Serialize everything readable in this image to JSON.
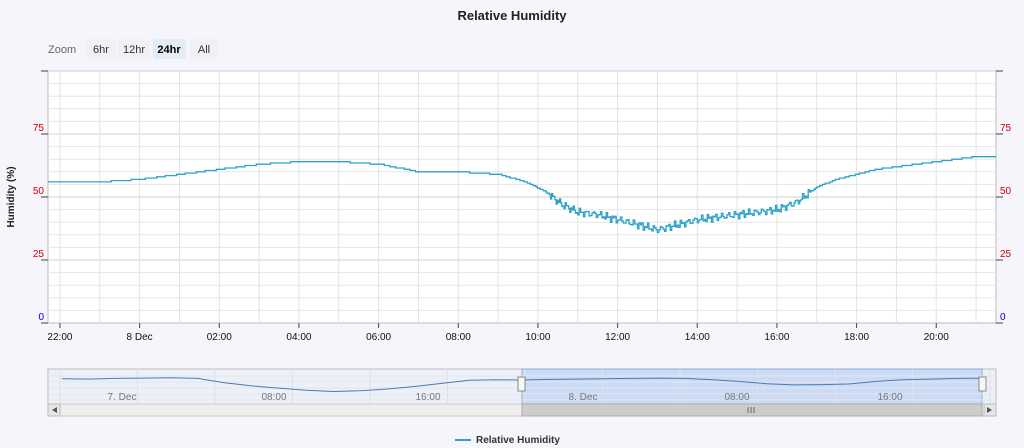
{
  "title": "Relative Humidity",
  "zoom": {
    "label": "Zoom",
    "buttons": [
      "6hr",
      "12hr",
      "24hr",
      "All"
    ],
    "selected": "24hr"
  },
  "colors": {
    "series": "#2fa3c6",
    "tick_red": "#cc0000",
    "tick_blue": "#0000cc",
    "selection": "#cfdcf7"
  },
  "chart_data": {
    "type": "line",
    "title": "Relative Humidity",
    "ylabel": "Humidity (%)",
    "ylim": [
      0,
      100
    ],
    "y_ticks": [
      "0",
      "25",
      "50",
      "75"
    ],
    "y_ticks_right": [
      "0",
      "25",
      "50",
      "75"
    ],
    "x_ticks": [
      "22:00",
      "8 Dec",
      "02:00",
      "04:00",
      "06:00",
      "08:00",
      "10:00",
      "12:00",
      "14:00",
      "16:00",
      "18:00",
      "20:00"
    ],
    "x_hours": [
      -2,
      0,
      2,
      4,
      6,
      8,
      10,
      12,
      14,
      16,
      18,
      20
    ],
    "xlim_hours": [
      -2.3,
      21.5
    ],
    "grid": true,
    "legend_position": "bottom-center",
    "series": [
      {
        "name": "Relative Humidity",
        "x_hours": [
          -2.3,
          -1.0,
          0.0,
          1.0,
          2.0,
          3.0,
          4.0,
          5.0,
          6.0,
          7.0,
          8.0,
          9.0,
          9.7,
          10.2,
          10.6,
          11.0,
          11.5,
          12.0,
          12.5,
          13.0,
          13.5,
          14.0,
          14.5,
          15.0,
          15.5,
          16.0,
          16.5,
          17.0,
          17.5,
          18.0,
          18.5,
          19.0,
          19.5,
          20.0,
          20.5,
          21.0,
          21.5
        ],
        "values": [
          56,
          56,
          57,
          59,
          61,
          63,
          64,
          64,
          63,
          60,
          60,
          59,
          56,
          52,
          47,
          44,
          43,
          41,
          39,
          37,
          39,
          41,
          42,
          43,
          44,
          45,
          48,
          54,
          57,
          59,
          61,
          62,
          63,
          64,
          65,
          66,
          66
        ]
      }
    ],
    "navigator": {
      "labels": [
        "7. Dec",
        "08:00",
        "16:00",
        "8. Dec",
        "08:00",
        "16:00"
      ]
    },
    "legend": [
      "Relative Humidity"
    ]
  }
}
